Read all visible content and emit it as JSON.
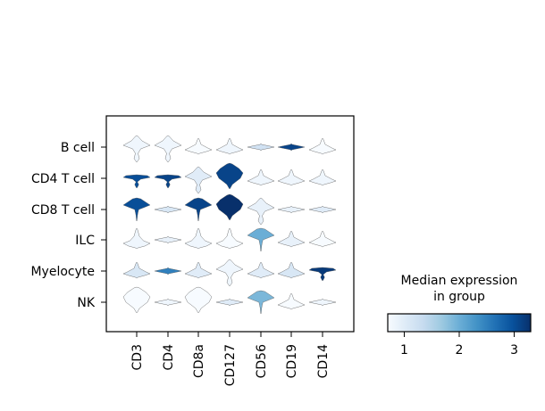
{
  "chart_data": {
    "type": "stacked violin",
    "groups": [
      "B cell",
      "CD4 T cell",
      "CD8 T cell",
      "ILC",
      "Myelocyte",
      "NK"
    ],
    "genes": [
      "CD3",
      "CD4",
      "CD8a",
      "CD127",
      "CD56",
      "CD19",
      "CD14"
    ],
    "median_expression": [
      [
        0.8,
        0.8,
        0.6,
        0.8,
        1.2,
        3.1,
        0.6
      ],
      [
        3.0,
        3.1,
        1.0,
        3.1,
        0.8,
        0.8,
        0.8
      ],
      [
        3.0,
        1.1,
        3.1,
        3.3,
        0.9,
        0.9,
        1.0
      ],
      [
        0.8,
        0.9,
        0.8,
        0.7,
        2.0,
        0.9,
        0.6
      ],
      [
        1.1,
        2.5,
        1.0,
        0.8,
        1.0,
        1.1,
        3.2
      ],
      [
        0.7,
        0.8,
        0.7,
        1.0,
        1.9,
        0.7,
        0.8
      ]
    ],
    "colorbar": {
      "title": "Median expression\nin group",
      "colormap": "Blues",
      "range": [
        0.7,
        3.3
      ],
      "ticks": [
        1,
        2,
        3
      ]
    }
  }
}
